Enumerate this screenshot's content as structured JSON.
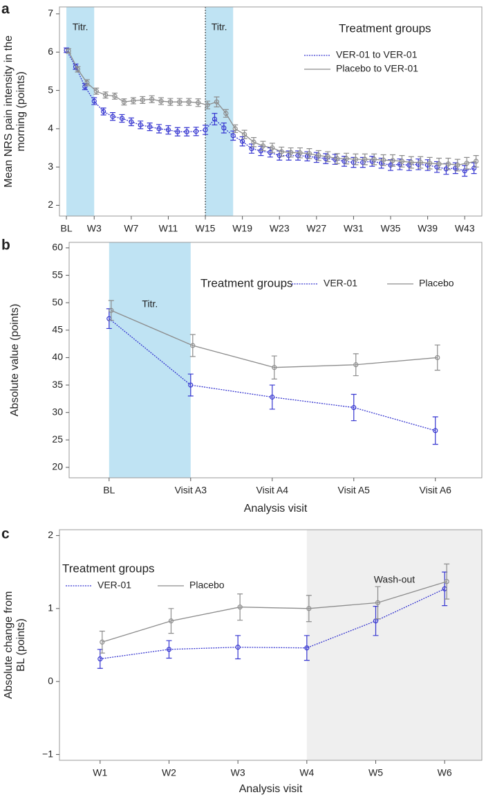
{
  "chart_data": [
    {
      "type": "line",
      "panel_label": "a",
      "y_label": [
        "Mean NRS pain intensity in the",
        "morning (points)"
      ],
      "legend_title": "Treatment groups",
      "legend": "top-right",
      "categories": [
        "BL",
        null,
        null,
        "W3",
        null,
        null,
        null,
        "W7",
        null,
        null,
        null,
        "W11",
        null,
        null,
        null,
        "W15",
        null,
        null,
        null,
        "W19",
        null,
        null,
        null,
        "W23",
        null,
        null,
        null,
        "W27",
        null,
        null,
        null,
        "W31",
        null,
        null,
        null,
        "W35",
        null,
        null,
        null,
        "W39",
        null,
        null,
        null,
        "W43",
        null
      ],
      "xlim": [
        -0.75,
        44.85
      ],
      "ylim": [
        1.72,
        7.18
      ],
      "yticks": [
        2,
        3,
        4,
        5,
        6,
        7
      ],
      "shaded_regions": [
        {
          "x": [
            0,
            3
          ],
          "label": "Titr."
        },
        {
          "x": [
            15,
            18
          ],
          "label": "Titr."
        }
      ],
      "shade_color": "#bfe3f3",
      "vlines": [
        15
      ],
      "series": [
        {
          "name": "VER-01 to VER-01",
          "color": "#3535d0",
          "linestyle": "dotted",
          "values": [
            6.05,
            5.62,
            5.1,
            4.72,
            4.45,
            4.32,
            4.27,
            4.18,
            4.1,
            4.05,
            4.0,
            3.97,
            3.92,
            3.92,
            3.93,
            3.97,
            4.25,
            4.02,
            3.82,
            3.67,
            3.48,
            3.42,
            3.38,
            3.3,
            3.3,
            3.3,
            3.28,
            3.25,
            3.22,
            3.2,
            3.15,
            3.12,
            3.12,
            3.15,
            3.1,
            3.05,
            3.07,
            3.05,
            3.07,
            3.05,
            3.0,
            2.95,
            2.97,
            2.9,
            2.97
          ],
          "errors": [
            0.06,
            0.07,
            0.08,
            0.09,
            0.09,
            0.1,
            0.1,
            0.1,
            0.1,
            0.1,
            0.11,
            0.11,
            0.11,
            0.11,
            0.11,
            0.12,
            0.15,
            0.13,
            0.12,
            0.12,
            0.12,
            0.12,
            0.12,
            0.12,
            0.12,
            0.12,
            0.12,
            0.13,
            0.13,
            0.13,
            0.13,
            0.13,
            0.13,
            0.13,
            0.13,
            0.14,
            0.14,
            0.14,
            0.14,
            0.14,
            0.14,
            0.14,
            0.14,
            0.14,
            0.14
          ]
        },
        {
          "name": "Placebo to VER-01",
          "color": "#8c8c8c",
          "linestyle": "solid",
          "values": [
            6.03,
            5.55,
            5.2,
            4.98,
            4.88,
            4.85,
            4.7,
            4.73,
            4.75,
            4.77,
            4.72,
            4.7,
            4.7,
            4.7,
            4.68,
            4.62,
            4.7,
            4.4,
            4.0,
            3.85,
            3.65,
            3.55,
            3.5,
            3.4,
            3.38,
            3.37,
            3.35,
            3.3,
            3.27,
            3.22,
            3.22,
            3.2,
            3.2,
            3.2,
            3.18,
            3.17,
            3.15,
            3.12,
            3.12,
            3.1,
            3.08,
            3.08,
            3.05,
            3.1,
            3.15
          ],
          "errors": [
            0.06,
            0.07,
            0.08,
            0.08,
            0.08,
            0.08,
            0.08,
            0.08,
            0.09,
            0.09,
            0.09,
            0.09,
            0.09,
            0.09,
            0.1,
            0.1,
            0.13,
            0.1,
            0.1,
            0.11,
            0.12,
            0.12,
            0.12,
            0.12,
            0.12,
            0.13,
            0.13,
            0.13,
            0.13,
            0.13,
            0.14,
            0.14,
            0.14,
            0.14,
            0.14,
            0.15,
            0.15,
            0.15,
            0.15,
            0.15,
            0.15,
            0.15,
            0.15,
            0.15,
            0.15
          ]
        }
      ]
    },
    {
      "type": "line",
      "panel_label": "b",
      "y_label": [
        "Absolute value (points)"
      ],
      "x_label": "Analysis visit",
      "legend_title": "Treatment groups",
      "legend": "top",
      "categories": [
        "BL",
        "Visit A3",
        "Visit A4",
        "Visit A5",
        "Visit A6"
      ],
      "xlim": [
        -0.49,
        4.57
      ],
      "ylim": [
        18.1,
        61
      ],
      "yticks": [
        20,
        25,
        30,
        35,
        40,
        45,
        50,
        55,
        60
      ],
      "shaded_regions": [
        {
          "x": [
            0,
            1
          ],
          "label": "Titr."
        }
      ],
      "shade_color": "#bfe3f3",
      "series": [
        {
          "name": "VER-01",
          "color": "#3535d0",
          "linestyle": "dotted",
          "values": [
            47.1,
            35.0,
            32.8,
            30.9,
            26.7
          ],
          "errors": [
            1.8,
            2.0,
            2.2,
            2.4,
            2.5
          ]
        },
        {
          "name": "Placebo",
          "color": "#8c8c8c",
          "linestyle": "solid",
          "values": [
            48.6,
            42.2,
            38.2,
            38.7,
            40.0
          ],
          "errors": [
            1.8,
            2.0,
            2.1,
            2.0,
            2.3
          ]
        }
      ]
    },
    {
      "type": "line",
      "panel_label": "c",
      "y_label": [
        "Absolute change from",
        "BL (points)"
      ],
      "x_label": "Analysis visit",
      "legend_title": "Treatment groups",
      "legend": "top-left",
      "categories": [
        "W1",
        "W2",
        "W3",
        "W4",
        "W5",
        "W6"
      ],
      "xlim": [
        -0.59,
        5.54
      ],
      "ylim": [
        -1.08,
        2.08
      ],
      "yticks": [
        {
          "value": -1,
          "label": "−1"
        },
        0,
        1,
        2
      ],
      "shaded_regions": [
        {
          "x": [
            3,
            5.54
          ],
          "label": "Wash-out"
        }
      ],
      "shade_color": "#efefef",
      "series": [
        {
          "name": "VER-01",
          "color": "#3535d0",
          "linestyle": "dotted",
          "values": [
            0.31,
            0.44,
            0.47,
            0.46,
            0.83,
            1.27
          ],
          "errors": [
            0.13,
            0.12,
            0.16,
            0.17,
            0.2,
            0.23
          ]
        },
        {
          "name": "Placebo",
          "color": "#8c8c8c",
          "linestyle": "solid",
          "values": [
            0.54,
            0.83,
            1.02,
            1.0,
            1.08,
            1.37
          ],
          "errors": [
            0.15,
            0.17,
            0.18,
            0.18,
            0.22,
            0.24
          ]
        }
      ]
    }
  ]
}
